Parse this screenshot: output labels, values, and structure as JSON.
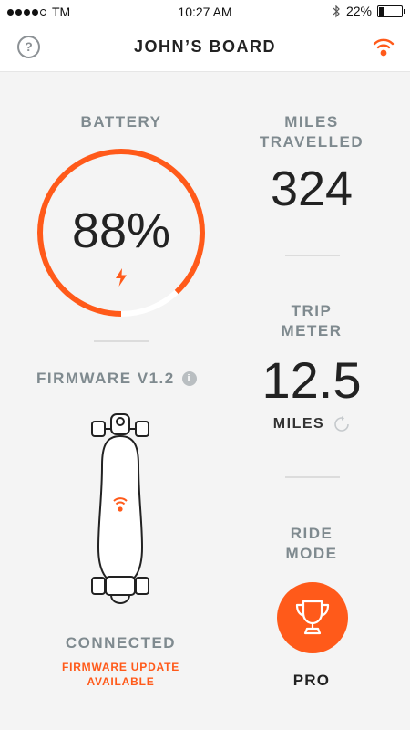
{
  "status_bar": {
    "carrier": "TM",
    "time": "10:27 AM",
    "battery": "22%",
    "battery_level": 0.22,
    "bluetooth_icon": "bluetooth-icon"
  },
  "header": {
    "title": "JOHN’S BOARD",
    "help_icon": "question-icon",
    "help_glyph": "?",
    "connection_icon": "wifi-icon"
  },
  "battery": {
    "label": "BATTERY",
    "value": "88%",
    "level": 0.88,
    "charging_icon": "lightning-icon"
  },
  "miles": {
    "label_line1": "MILES",
    "label_line2": "TRAVELLED",
    "value": "324"
  },
  "trip": {
    "label_line1": "TRIP",
    "label_line2": "METER",
    "value": "12.5",
    "unit": "MILES",
    "reset_icon": "reset-icon"
  },
  "firmware": {
    "label": "FIRMWARE V1.2",
    "info_icon": "info-icon",
    "info_glyph": "i"
  },
  "board": {
    "icon": "skateboard-icon",
    "status": "CONNECTED",
    "update_line1": "FIRMWARE UPDATE",
    "update_line2": "AVAILABLE"
  },
  "ride_mode": {
    "label_line1": "RIDE",
    "label_line2": "MODE",
    "value": "PRO",
    "icon": "trophy-icon"
  },
  "colors": {
    "accent": "#ff5a1a",
    "label_gray": "#7f8a8f",
    "background": "#f4f4f4"
  }
}
